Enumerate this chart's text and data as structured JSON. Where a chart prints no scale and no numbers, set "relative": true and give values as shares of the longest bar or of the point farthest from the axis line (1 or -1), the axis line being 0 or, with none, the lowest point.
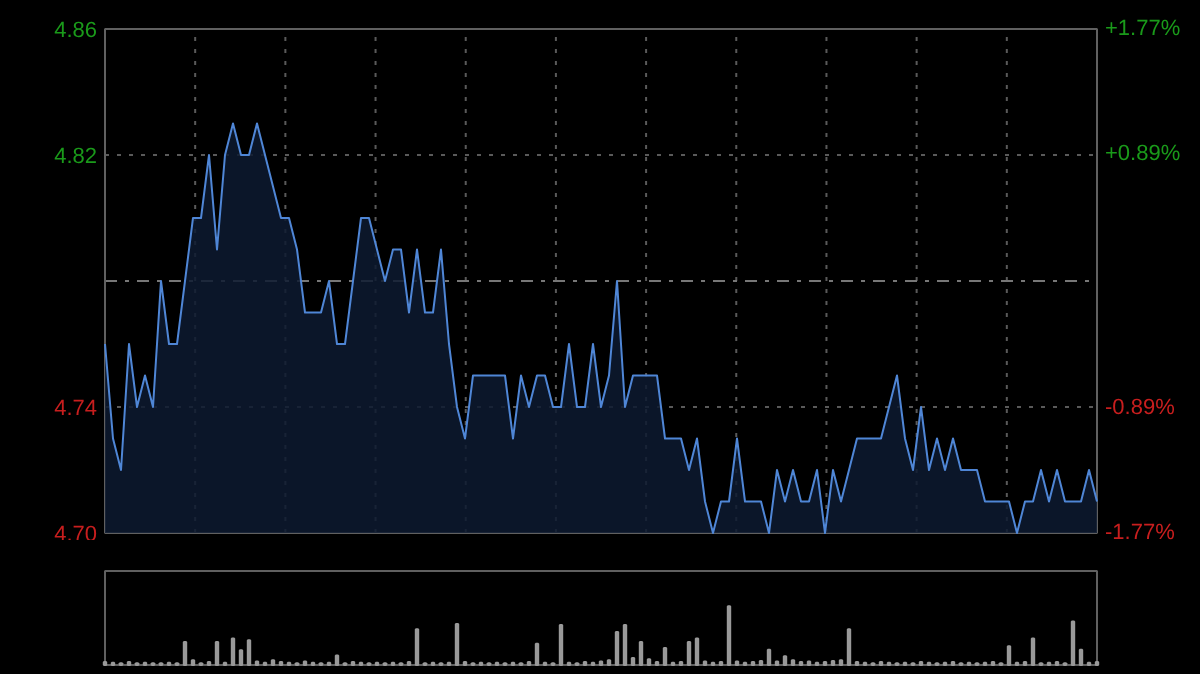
{
  "chart_data": [
    {
      "type": "area",
      "categories": [
        null,
        null,
        null,
        null,
        null,
        null,
        null,
        null,
        null,
        null,
        null,
        null,
        null,
        null,
        null,
        null,
        null,
        null,
        null,
        null,
        null,
        null,
        null,
        null,
        null,
        null,
        null,
        null,
        null,
        null,
        null,
        null,
        null,
        null,
        null,
        null,
        null,
        null,
        null,
        null,
        null,
        null,
        null,
        null,
        null,
        null,
        null,
        null,
        null,
        null,
        null,
        null,
        null,
        null,
        null,
        null,
        null,
        null,
        null,
        null,
        null,
        null,
        null,
        null,
        null,
        null,
        null,
        null,
        null,
        null,
        null,
        null,
        null,
        null,
        null,
        null,
        null,
        null,
        null,
        null,
        null,
        null,
        null,
        null,
        null,
        null,
        null,
        null,
        null,
        null,
        null,
        null,
        null,
        null,
        null,
        null,
        null,
        null,
        null,
        null,
        null,
        null,
        null,
        null,
        null,
        null,
        null,
        null,
        null,
        null,
        null,
        null,
        null,
        null,
        null,
        null,
        null,
        null,
        null,
        null,
        null,
        null,
        null,
        null,
        null
      ],
      "series": [
        {
          "color": "#4f86d6",
          "values": [
            4.76,
            4.73,
            4.72,
            4.76,
            4.74,
            4.75,
            4.74,
            4.78,
            4.76,
            4.76,
            4.78,
            4.8,
            4.8,
            4.82,
            4.79,
            4.82,
            4.83,
            4.82,
            4.82,
            4.83,
            4.82,
            4.81,
            4.8,
            4.8,
            4.79,
            4.77,
            4.77,
            4.77,
            4.78,
            4.76,
            4.76,
            4.78,
            4.8,
            4.8,
            4.79,
            4.78,
            4.79,
            4.79,
            4.77,
            4.79,
            4.77,
            4.77,
            4.79,
            4.76,
            4.74,
            4.73,
            4.75,
            4.75,
            4.75,
            4.75,
            4.75,
            4.73,
            4.75,
            4.74,
            4.75,
            4.75,
            4.74,
            4.74,
            4.76,
            4.74,
            4.74,
            4.76,
            4.74,
            4.75,
            4.78,
            4.74,
            4.75,
            4.75,
            4.75,
            4.75,
            4.73,
            4.73,
            4.73,
            4.72,
            4.73,
            4.71,
            4.7,
            4.71,
            4.71,
            4.73,
            4.71,
            4.71,
            4.71,
            4.7,
            4.72,
            4.71,
            4.72,
            4.71,
            4.71,
            4.72,
            4.7,
            4.72,
            4.71,
            4.72,
            4.73,
            4.73,
            4.73,
            4.73,
            4.74,
            4.75,
            4.73,
            4.72,
            4.74,
            4.72,
            4.73,
            4.72,
            4.73,
            4.72,
            4.72,
            4.72,
            4.71,
            4.71,
            4.71,
            4.71,
            4.7,
            4.71,
            4.71,
            4.72,
            4.71,
            4.72,
            4.71,
            4.71,
            4.71,
            4.72,
            4.71
          ]
        }
      ],
      "ylim": [
        4.7,
        4.86
      ],
      "yticks": [
        {
          "value": 4.7,
          "label": "4.70"
        },
        {
          "value": 4.74,
          "label": "4.74"
        },
        {
          "value": 4.82,
          "label": "4.82"
        },
        {
          "value": 4.86,
          "label": "4.86"
        }
      ],
      "y2lim": [
        -1.77,
        1.77
      ],
      "y2ticks": [
        {
          "value": -1.77,
          "label": "-1.77%"
        },
        {
          "value": -0.89,
          "label": "-0.89%"
        },
        {
          "value": 0.89,
          "label": "+0.89%"
        },
        {
          "value": 1.77,
          "label": "+1.77%"
        }
      ],
      "ref_lines": [
        {
          "axis": "y",
          "value": 4.78,
          "line_style": "dashed",
          "color": "#777777"
        }
      ],
      "grid": true
    },
    {
      "type": "bar",
      "relative": true,
      "color": "#9a9a9a",
      "categories": [
        null,
        null,
        null,
        null,
        null,
        null,
        null,
        null,
        null,
        null,
        null,
        null,
        null,
        null,
        null,
        null,
        null,
        null,
        null,
        null,
        null,
        null,
        null,
        null,
        null,
        null,
        null,
        null,
        null,
        null,
        null,
        null,
        null,
        null,
        null,
        null,
        null,
        null,
        null,
        null,
        null,
        null,
        null,
        null,
        null,
        null,
        null,
        null,
        null,
        null,
        null,
        null,
        null,
        null,
        null,
        null,
        null,
        null,
        null,
        null,
        null,
        null,
        null,
        null,
        null,
        null,
        null,
        null,
        null,
        null,
        null,
        null,
        null,
        null,
        null,
        null,
        null,
        null,
        null,
        null,
        null,
        null,
        null,
        null,
        null,
        null,
        null,
        null,
        null,
        null,
        null,
        null,
        null,
        null,
        null,
        null,
        null,
        null,
        null,
        null,
        null,
        null,
        null,
        null,
        null,
        null,
        null,
        null,
        null,
        null,
        null,
        null,
        null,
        null,
        null,
        null,
        null,
        null,
        null,
        null,
        null,
        null,
        null,
        null,
        null
      ],
      "values": [
        0.05,
        0.04,
        0.03,
        0.05,
        0.03,
        0.04,
        0.03,
        0.03,
        0.04,
        0.03,
        0.39,
        0.08,
        0.03,
        0.05,
        0.39,
        0.04,
        0.45,
        0.25,
        0.42,
        0.06,
        0.04,
        0.08,
        0.05,
        0.04,
        0.03,
        0.06,
        0.04,
        0.03,
        0.04,
        0.16,
        0.03,
        0.05,
        0.04,
        0.03,
        0.04,
        0.03,
        0.04,
        0.03,
        0.05,
        0.61,
        0.03,
        0.04,
        0.03,
        0.04,
        0.7,
        0.05,
        0.03,
        0.04,
        0.03,
        0.04,
        0.03,
        0.04,
        0.03,
        0.05,
        0.36,
        0.04,
        0.03,
        0.68,
        0.04,
        0.03,
        0.05,
        0.04,
        0.06,
        0.08,
        0.56,
        0.68,
        0.12,
        0.39,
        0.1,
        0.05,
        0.29,
        0.04,
        0.05,
        0.39,
        0.45,
        0.06,
        0.04,
        0.05,
        1.0,
        0.06,
        0.04,
        0.05,
        0.07,
        0.26,
        0.06,
        0.15,
        0.08,
        0.05,
        0.06,
        0.04,
        0.05,
        0.07,
        0.08,
        0.61,
        0.05,
        0.04,
        0.03,
        0.05,
        0.04,
        0.03,
        0.04,
        0.03,
        0.05,
        0.04,
        0.03,
        0.04,
        0.05,
        0.03,
        0.04,
        0.03,
        0.04,
        0.05,
        0.03,
        0.32,
        0.04,
        0.05,
        0.45,
        0.03,
        0.04,
        0.05,
        0.03,
        0.74,
        0.26,
        0.04,
        0.05
      ]
    }
  ]
}
